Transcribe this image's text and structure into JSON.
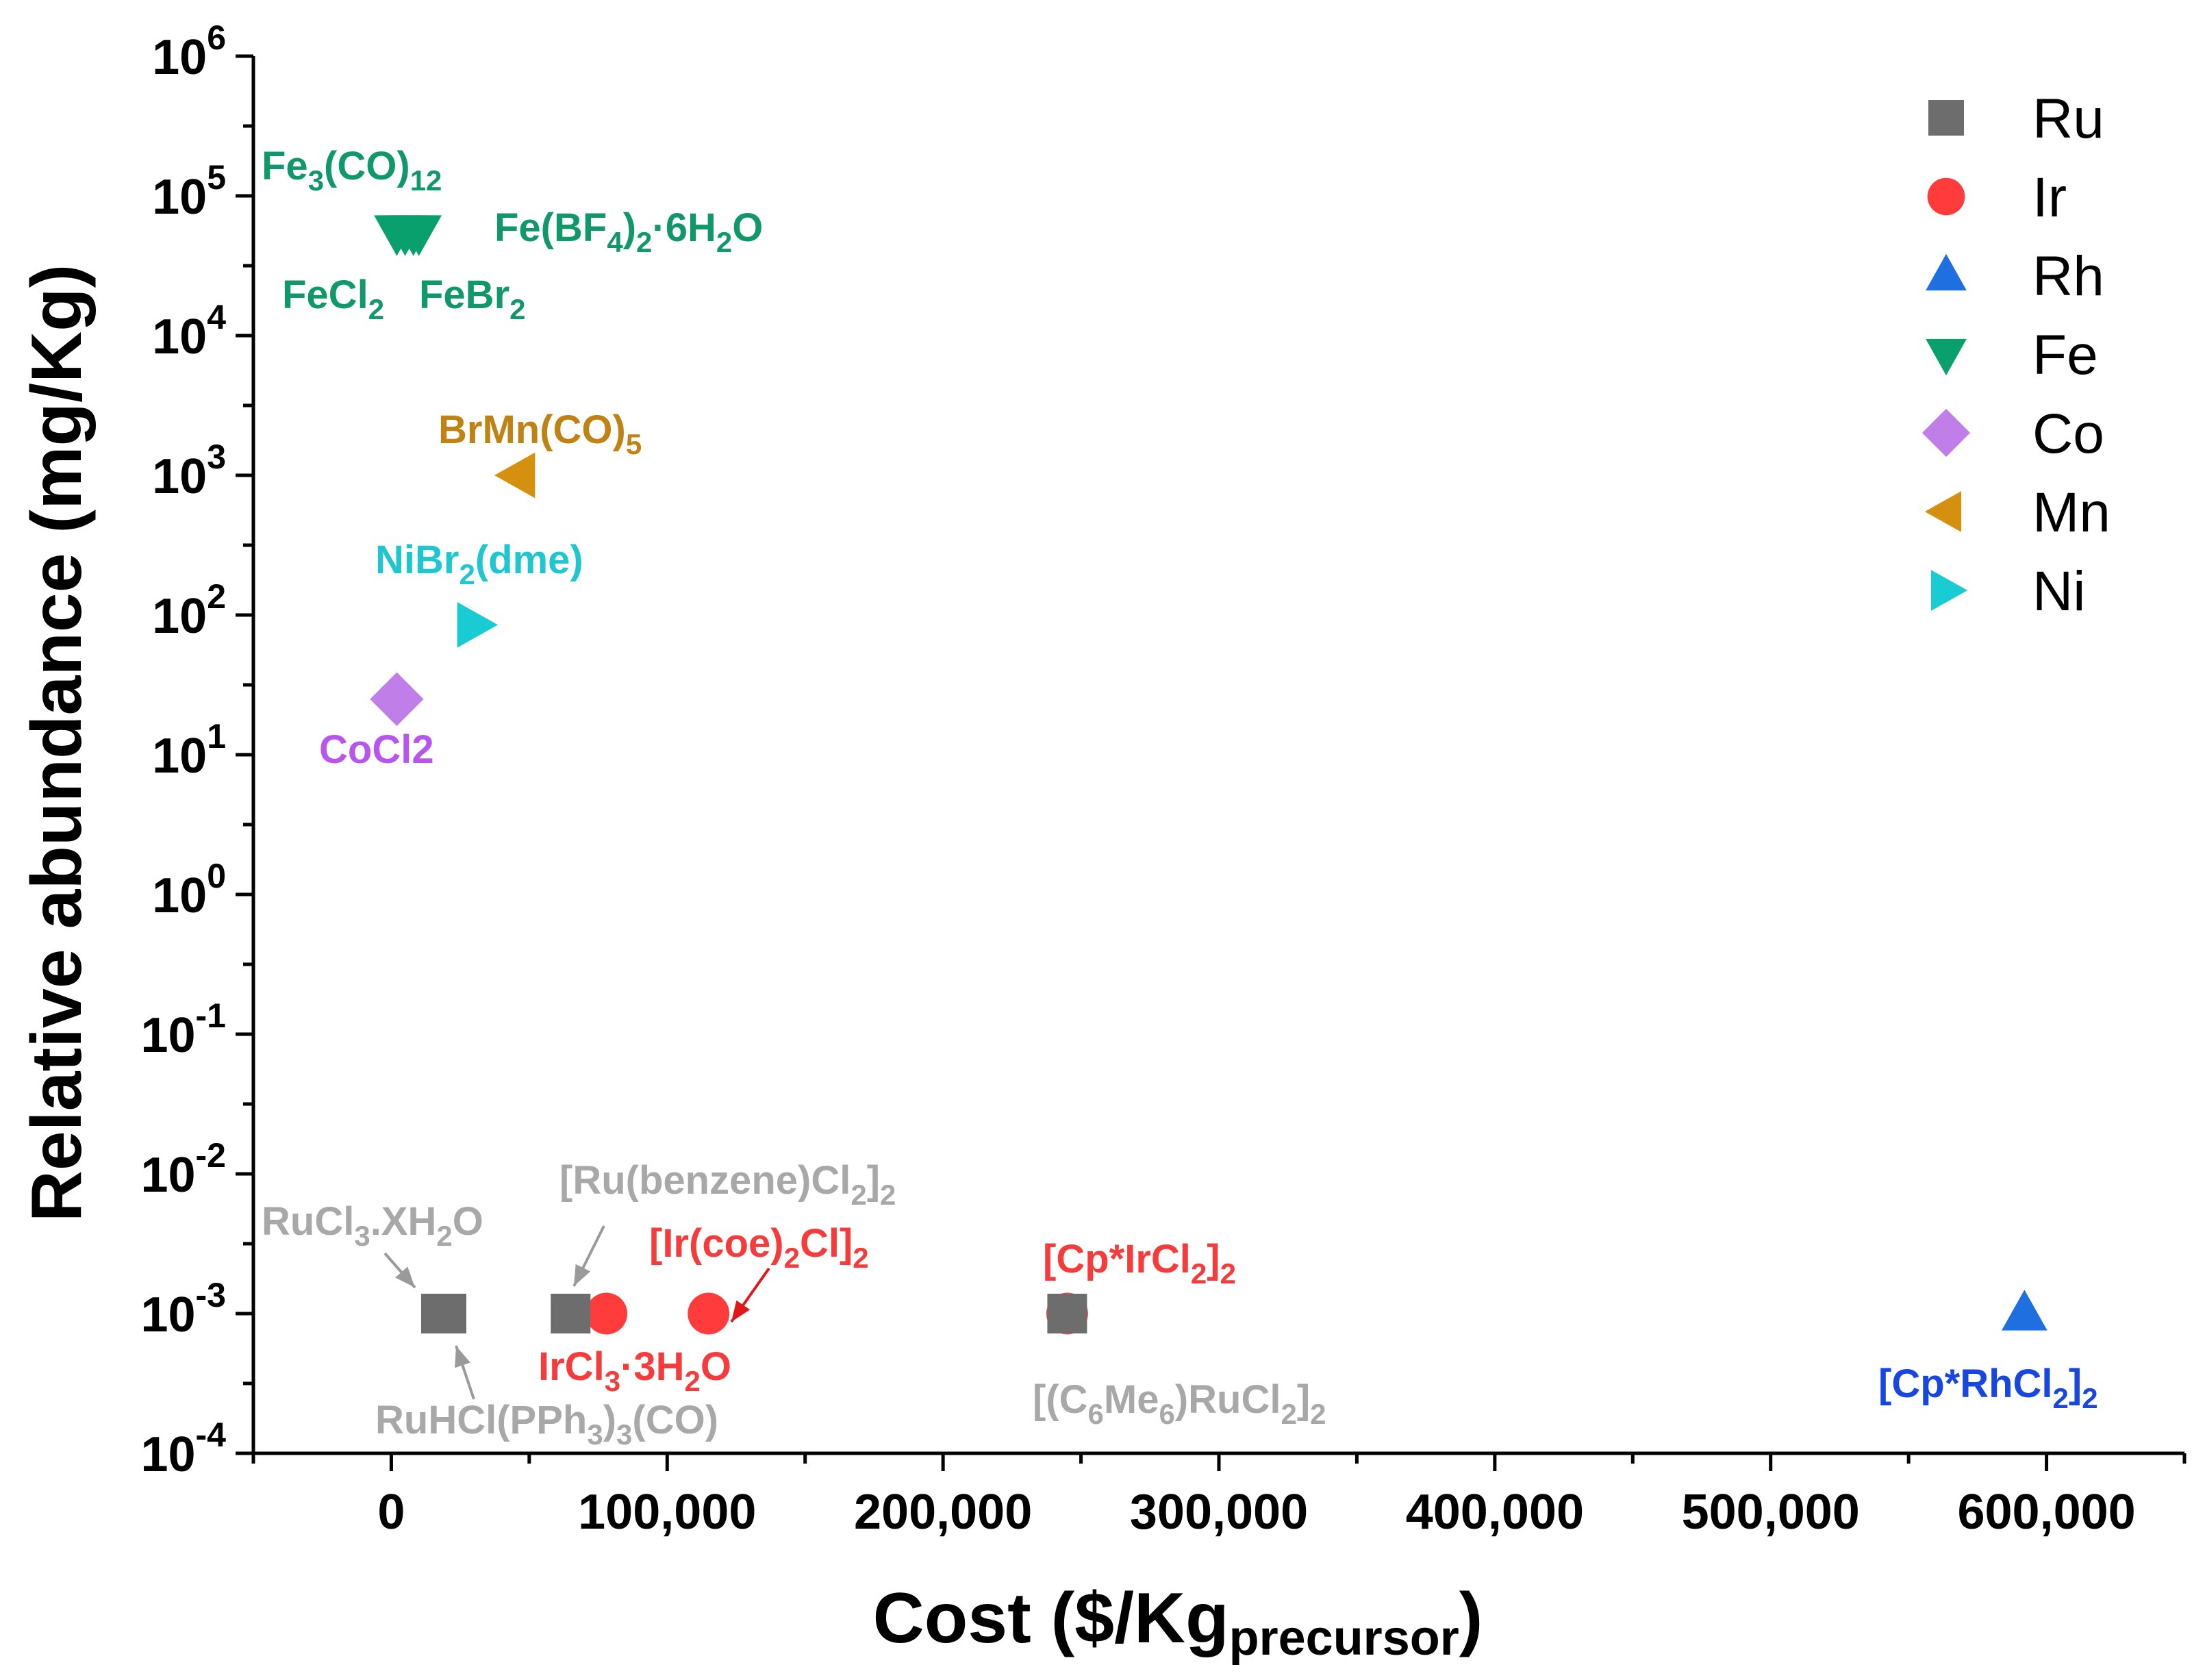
{
  "chart_data": {
    "type": "scatter",
    "xlabel": "Cost ($/Kg",
    "xlabel_sub": "precursor",
    "xlabel_end": ")",
    "ylabel": "Relative abundance (mg/Kg)",
    "xscale": "linear",
    "yscale": "log",
    "xlim": [
      -50000,
      650000
    ],
    "ylim_exp": [
      -4,
      6
    ],
    "xticks": [
      0,
      100000,
      200000,
      300000,
      400000,
      500000,
      600000
    ],
    "xtick_labels": [
      "0",
      "100,000",
      "200,000",
      "300,000",
      "400,000",
      "500,000",
      "600,000"
    ],
    "yticks_exp": [
      -4,
      -3,
      -2,
      -1,
      0,
      1,
      2,
      3,
      4,
      5,
      6
    ],
    "ytick_base": "10",
    "ytick_exps": [
      "-4",
      "-3",
      "-2",
      "-1",
      "0",
      "1",
      "2",
      "3",
      "4",
      "5",
      "6"
    ],
    "legend_position": "top-right",
    "series": [
      {
        "name": "Ru",
        "marker": "square",
        "color": "#6d6d6d",
        "points": [
          {
            "x": 18000,
            "y": 0.001
          },
          {
            "x": 20000,
            "y": 0.001
          },
          {
            "x": 65000,
            "y": 0.001
          },
          {
            "x": 245000,
            "y": 0.001
          }
        ]
      },
      {
        "name": "Ir",
        "marker": "circle",
        "color": "#ff3b3b",
        "points": [
          {
            "x": 78000,
            "y": 0.001
          },
          {
            "x": 115000,
            "y": 0.001
          },
          {
            "x": 245000,
            "y": 0.001
          }
        ]
      },
      {
        "name": "Rh",
        "marker": "triangle-up",
        "color": "#1f6fe0",
        "points": [
          {
            "x": 592000,
            "y": 0.001
          }
        ]
      },
      {
        "name": "Fe",
        "marker": "triangle-down",
        "color": "#0aa06e",
        "points": [
          {
            "x": 2000,
            "y": 55000
          },
          {
            "x": 5000,
            "y": 55000
          },
          {
            "x": 8000,
            "y": 55000
          },
          {
            "x": 10000,
            "y": 55000
          }
        ]
      },
      {
        "name": "Co",
        "marker": "diamond",
        "color": "#c07ee8",
        "points": [
          {
            "x": 2000,
            "y": 25
          }
        ]
      },
      {
        "name": "Mn",
        "marker": "triangle-left",
        "color": "#d4900e",
        "points": [
          {
            "x": 46000,
            "y": 1000
          }
        ]
      },
      {
        "name": "Ni",
        "marker": "triangle-right",
        "color": "#19cbd3",
        "points": [
          {
            "x": 30000,
            "y": 85
          }
        ]
      }
    ],
    "annotations": [
      {
        "id": "fe3co12",
        "color": "#10986b",
        "parts": [
          {
            "t": "Fe"
          },
          {
            "t": "3",
            "s": "sub"
          },
          {
            "t": "(CO)"
          },
          {
            "t": "12",
            "s": "sub"
          }
        ]
      },
      {
        "id": "febf4",
        "color": "#10986b",
        "parts": [
          {
            "t": "Fe(BF"
          },
          {
            "t": "4",
            "s": "sub"
          },
          {
            "t": ")"
          },
          {
            "t": "2",
            "s": "sub"
          },
          {
            "t": "·6H"
          },
          {
            "t": "2",
            "s": "sub"
          },
          {
            "t": "O"
          }
        ]
      },
      {
        "id": "fecl2",
        "color": "#10986b",
        "parts": [
          {
            "t": "FeCl"
          },
          {
            "t": "2",
            "s": "sub"
          }
        ]
      },
      {
        "id": "febr2",
        "color": "#10986b",
        "parts": [
          {
            "t": "FeBr"
          },
          {
            "t": "2",
            "s": "sub"
          }
        ]
      },
      {
        "id": "brmnco5",
        "color": "#c08212",
        "parts": [
          {
            "t": "BrMn(CO)"
          },
          {
            "t": "5",
            "s": "sub"
          }
        ]
      },
      {
        "id": "nibr2dme",
        "color": "#1ec7cf",
        "parts": [
          {
            "t": "NiBr"
          },
          {
            "t": "2",
            "s": "sub"
          },
          {
            "t": "(dme)"
          }
        ]
      },
      {
        "id": "cocl2",
        "color": "#b755ec",
        "parts": [
          {
            "t": "CoCl2"
          }
        ]
      },
      {
        "id": "rucl3",
        "color": "#a8a8a8",
        "parts": [
          {
            "t": "RuCl"
          },
          {
            "t": "3",
            "s": "sub"
          },
          {
            "t": ".XH"
          },
          {
            "t": "2",
            "s": "sub"
          },
          {
            "t": "O"
          }
        ]
      },
      {
        "id": "rubenzene",
        "color": "#a8a8a8",
        "parts": [
          {
            "t": "[Ru(benzene)Cl"
          },
          {
            "t": "2",
            "s": "sub"
          },
          {
            "t": "]"
          },
          {
            "t": "2",
            "s": "sub"
          }
        ]
      },
      {
        "id": "ircoe",
        "color": "#f53b3b",
        "parts": [
          {
            "t": "[Ir(coe)"
          },
          {
            "t": "2",
            "s": "sub"
          },
          {
            "t": "Cl]"
          },
          {
            "t": "2",
            "s": "sub"
          }
        ]
      },
      {
        "id": "cpircl2",
        "color": "#f53b3b",
        "parts": [
          {
            "t": "[Cp*IrCl"
          },
          {
            "t": "2",
            "s": "sub"
          },
          {
            "t": "]"
          },
          {
            "t": "2",
            "s": "sub"
          }
        ]
      },
      {
        "id": "ircl3",
        "color": "#f53b3b",
        "parts": [
          {
            "t": "IrCl"
          },
          {
            "t": "3",
            "s": "sub"
          },
          {
            "t": "·3H"
          },
          {
            "t": "2",
            "s": "sub"
          },
          {
            "t": "O"
          }
        ]
      },
      {
        "id": "ruhcl",
        "color": "#a8a8a8",
        "parts": [
          {
            "t": "RuHCl(PPh"
          },
          {
            "t": "3",
            "s": "sub"
          },
          {
            "t": ")"
          },
          {
            "t": "3",
            "s": "sub"
          },
          {
            "t": "(CO)"
          }
        ]
      },
      {
        "id": "c6me6",
        "color": "#a8a8a8",
        "parts": [
          {
            "t": "[(C"
          },
          {
            "t": "6",
            "s": "sub"
          },
          {
            "t": "Me"
          },
          {
            "t": "6",
            "s": "sub"
          },
          {
            "t": ")RuCl"
          },
          {
            "t": "2",
            "s": "sub"
          },
          {
            "t": "]"
          },
          {
            "t": "2",
            "s": "sub"
          }
        ]
      },
      {
        "id": "cprhcl2",
        "color": "#1846e0",
        "parts": [
          {
            "t": "[Cp*RhCl"
          },
          {
            "t": "2",
            "s": "sub"
          },
          {
            "t": "]"
          },
          {
            "t": "2",
            "s": "sub"
          }
        ]
      }
    ]
  }
}
